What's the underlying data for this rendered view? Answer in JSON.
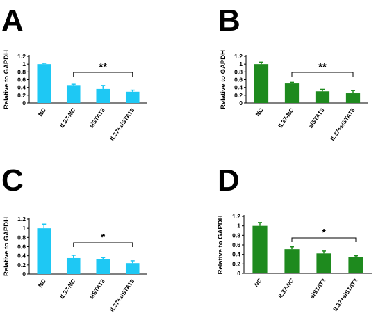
{
  "chart_data": [
    {
      "panel": "A",
      "type": "bar",
      "ylabel": "Relative to GAPDH",
      "ylim": [
        0,
        1.2
      ],
      "yticks": [
        "0",
        "0.2",
        "0.4",
        "0.6",
        "0.8",
        "1",
        "1.2"
      ],
      "categories": [
        "NC",
        "IL37-NC",
        "siSTAT3",
        "IL37+siSTAT3"
      ],
      "italic_categories": [
        "IL37-NC"
      ],
      "values": [
        1.0,
        0.46,
        0.36,
        0.29
      ],
      "errors": [
        0.02,
        0.02,
        0.09,
        0.04
      ],
      "color": "#1ec8f4",
      "significance": {
        "label": "**",
        "from": 1,
        "to": 3
      }
    },
    {
      "panel": "B",
      "type": "bar",
      "ylabel": "Relative to GAPDH",
      "ylim": [
        0,
        1.2
      ],
      "yticks": [
        "0",
        "0.2",
        "0.4",
        "0.6",
        "0.8",
        "1",
        "1.2"
      ],
      "categories": [
        "NC",
        "IL37-NC",
        "siSTAT3",
        "IL37+siSTAT3"
      ],
      "italic_categories": [],
      "values": [
        1.0,
        0.5,
        0.3,
        0.25
      ],
      "errors": [
        0.05,
        0.03,
        0.05,
        0.07
      ],
      "color": "#1e8a1e",
      "significance": {
        "label": "**",
        "from": 1,
        "to": 3
      }
    },
    {
      "panel": "C",
      "type": "bar",
      "ylabel": "Relative to GAPDH",
      "ylim": [
        0,
        1.2
      ],
      "yticks": [
        "0",
        "0.2",
        "0.4",
        "0.6",
        "0.8",
        "1",
        "1.2"
      ],
      "categories": [
        "NC",
        "IL37-NC",
        "siSTAT3",
        "IL37+siSTAT3"
      ],
      "italic_categories": [
        "IL37-NC"
      ],
      "values": [
        1.0,
        0.35,
        0.32,
        0.24
      ],
      "errors": [
        0.09,
        0.06,
        0.04,
        0.05
      ],
      "color": "#1ec8f4",
      "significance": {
        "label": "*",
        "from": 1,
        "to": 3
      }
    },
    {
      "panel": "D",
      "type": "bar",
      "ylabel": "Relative to GAPDH",
      "ylim": [
        0,
        1.2
      ],
      "yticks": [
        "0",
        "0.2",
        "0.4",
        "0.6",
        "0.8",
        "1",
        "1.2"
      ],
      "categories": [
        "NC",
        "IL37-NC",
        "siSTAT3",
        "IL37+siSTAT3"
      ],
      "italic_categories": [
        "NC",
        "IL37-NC"
      ],
      "values": [
        1.0,
        0.51,
        0.42,
        0.35
      ],
      "errors": [
        0.07,
        0.05,
        0.05,
        0.02
      ],
      "color": "#1e8a1e",
      "significance": {
        "label": "*",
        "from": 1,
        "to": 3
      }
    }
  ]
}
